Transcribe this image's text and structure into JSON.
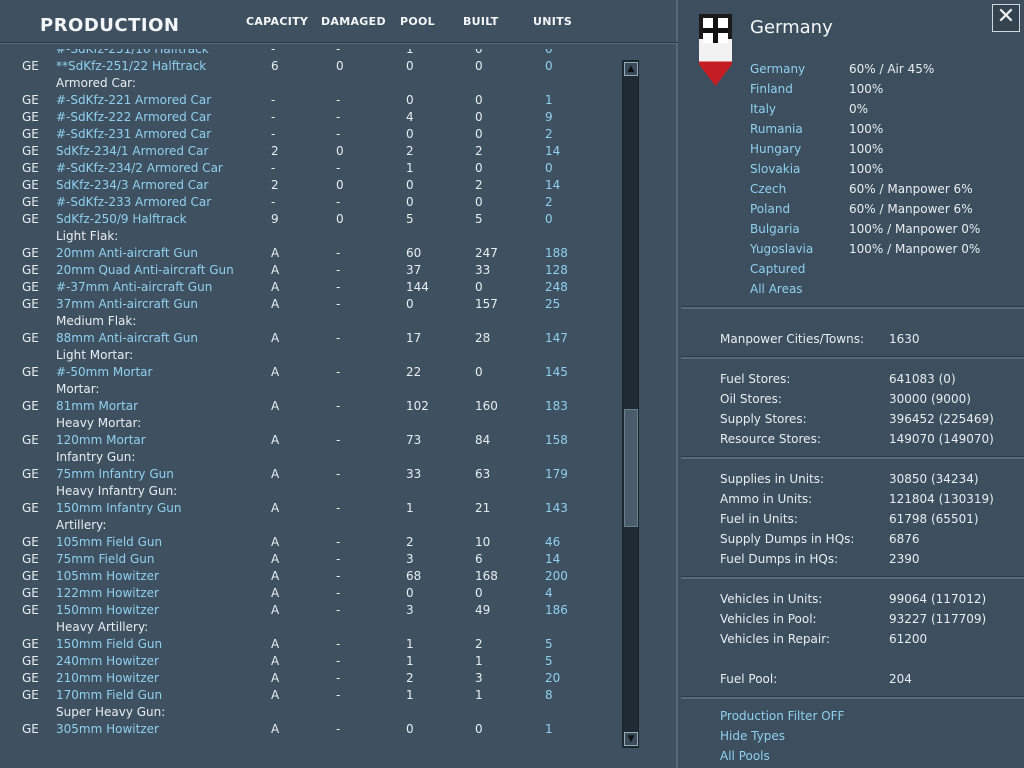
{
  "header": {
    "title": "PRODUCTION",
    "columns": [
      "CAPACITY",
      "DAMAGED",
      "POOL",
      "BUILT",
      "UNITS"
    ]
  },
  "rows": [
    {
      "nat": "",
      "name": "#-SdKfz-251/16 Halftrack",
      "cap": "-",
      "dam": "-",
      "pool": "1",
      "built": "0",
      "units": "0",
      "partial": true
    },
    {
      "nat": "GE",
      "name": "**SdKfz-251/22 Halftrack",
      "cap": "6",
      "dam": "0",
      "pool": "0",
      "built": "0",
      "units": "0"
    },
    {
      "header": "Armored Car:"
    },
    {
      "nat": "GE",
      "name": "#-SdKfz-221 Armored Car",
      "cap": "-",
      "dam": "-",
      "pool": "0",
      "built": "0",
      "units": "1"
    },
    {
      "nat": "GE",
      "name": "#-SdKfz-222 Armored Car",
      "cap": "-",
      "dam": "-",
      "pool": "4",
      "built": "0",
      "units": "9"
    },
    {
      "nat": "GE",
      "name": "#-SdKfz-231 Armored Car",
      "cap": "-",
      "dam": "-",
      "pool": "0",
      "built": "0",
      "units": "2"
    },
    {
      "nat": "GE",
      "name": "SdKfz-234/1 Armored Car",
      "cap": "2",
      "dam": "0",
      "pool": "2",
      "built": "2",
      "units": "14"
    },
    {
      "nat": "GE",
      "name": "#-SdKfz-234/2 Armored Car",
      "cap": "-",
      "dam": "-",
      "pool": "1",
      "built": "0",
      "units": "0"
    },
    {
      "nat": "GE",
      "name": "SdKfz-234/3 Armored Car",
      "cap": "2",
      "dam": "0",
      "pool": "0",
      "built": "2",
      "units": "14"
    },
    {
      "nat": "GE",
      "name": "#-SdKfz-233 Armored Car",
      "cap": "-",
      "dam": "-",
      "pool": "0",
      "built": "0",
      "units": "2"
    },
    {
      "nat": "GE",
      "name": "SdKfz-250/9 Halftrack",
      "cap": "9",
      "dam": "0",
      "pool": "5",
      "built": "5",
      "units": "0"
    },
    {
      "header": "Light Flak:"
    },
    {
      "nat": "GE",
      "name": "20mm Anti-aircraft Gun",
      "cap": "A",
      "dam": "-",
      "pool": "60",
      "built": "247",
      "units": "188"
    },
    {
      "nat": "GE",
      "name": "20mm Quad Anti-aircraft Gun",
      "cap": "A",
      "dam": "-",
      "pool": "37",
      "built": "33",
      "units": "128"
    },
    {
      "nat": "GE",
      "name": "#-37mm Anti-aircraft Gun",
      "cap": "A",
      "dam": "-",
      "pool": "144",
      "built": "0",
      "units": "248"
    },
    {
      "nat": "GE",
      "name": "37mm Anti-aircraft Gun",
      "cap": "A",
      "dam": "-",
      "pool": "0",
      "built": "157",
      "units": "25"
    },
    {
      "header": "Medium Flak:"
    },
    {
      "nat": "GE",
      "name": "88mm Anti-aircraft Gun",
      "cap": "A",
      "dam": "-",
      "pool": "17",
      "built": "28",
      "units": "147"
    },
    {
      "header": "Light Mortar:"
    },
    {
      "nat": "GE",
      "name": "#-50mm Mortar",
      "cap": "A",
      "dam": "-",
      "pool": "22",
      "built": "0",
      "units": "145"
    },
    {
      "header": "Mortar:"
    },
    {
      "nat": "GE",
      "name": "81mm Mortar",
      "cap": "A",
      "dam": "-",
      "pool": "102",
      "built": "160",
      "units": "183"
    },
    {
      "header": "Heavy Mortar:"
    },
    {
      "nat": "GE",
      "name": "120mm Mortar",
      "cap": "A",
      "dam": "-",
      "pool": "73",
      "built": "84",
      "units": "158"
    },
    {
      "header": "Infantry Gun:"
    },
    {
      "nat": "GE",
      "name": "75mm Infantry Gun",
      "cap": "A",
      "dam": "-",
      "pool": "33",
      "built": "63",
      "units": "179"
    },
    {
      "header": "Heavy Infantry Gun:"
    },
    {
      "nat": "GE",
      "name": "150mm Infantry Gun",
      "cap": "A",
      "dam": "-",
      "pool": "1",
      "built": "21",
      "units": "143"
    },
    {
      "header": "Artillery:"
    },
    {
      "nat": "GE",
      "name": "105mm Field Gun",
      "cap": "A",
      "dam": "-",
      "pool": "2",
      "built": "10",
      "units": "46"
    },
    {
      "nat": "GE",
      "name": "75mm Field Gun",
      "cap": "A",
      "dam": "-",
      "pool": "3",
      "built": "6",
      "units": "14"
    },
    {
      "nat": "GE",
      "name": "105mm Howitzer",
      "cap": "A",
      "dam": "-",
      "pool": "68",
      "built": "168",
      "units": "200"
    },
    {
      "nat": "GE",
      "name": "122mm Howitzer",
      "cap": "A",
      "dam": "-",
      "pool": "0",
      "built": "0",
      "units": "4"
    },
    {
      "nat": "GE",
      "name": "150mm Howitzer",
      "cap": "A",
      "dam": "-",
      "pool": "3",
      "built": "49",
      "units": "186"
    },
    {
      "header": "Heavy Artillery:"
    },
    {
      "nat": "GE",
      "name": "150mm Field Gun",
      "cap": "A",
      "dam": "-",
      "pool": "1",
      "built": "2",
      "units": "5"
    },
    {
      "nat": "GE",
      "name": "240mm Howitzer",
      "cap": "A",
      "dam": "-",
      "pool": "1",
      "built": "1",
      "units": "5"
    },
    {
      "nat": "GE",
      "name": "210mm Howitzer",
      "cap": "A",
      "dam": "-",
      "pool": "2",
      "built": "3",
      "units": "20"
    },
    {
      "nat": "GE",
      "name": "170mm Field Gun",
      "cap": "A",
      "dam": "-",
      "pool": "1",
      "built": "1",
      "units": "8"
    },
    {
      "header": "Super Heavy Gun:"
    },
    {
      "nat": "GE",
      "name": "305mm Howitzer",
      "cap": "A",
      "dam": "-",
      "pool": "0",
      "built": "0",
      "units": "1"
    }
  ],
  "scrollbar": {
    "up_glyph": "▲",
    "down_glyph": "▼"
  },
  "nation": {
    "name": "Germany",
    "close_glyph": "✕",
    "areas": [
      {
        "name": "Germany",
        "value": "60% / Air 45%"
      },
      {
        "name": "Finland",
        "value": "100%"
      },
      {
        "name": "Italy",
        "value": "0%"
      },
      {
        "name": "Rumania",
        "value": "100%"
      },
      {
        "name": "Hungary",
        "value": "100%"
      },
      {
        "name": "Slovakia",
        "value": "100%"
      },
      {
        "name": "Czech",
        "value": "60% / Manpower 6%"
      },
      {
        "name": "Poland",
        "value": "60% / Manpower 6%"
      },
      {
        "name": "Bulgaria",
        "value": "100% / Manpower 0%"
      },
      {
        "name": "Yugoslavia",
        "value": "100% / Manpower 0%"
      },
      {
        "name": "Captured",
        "value": ""
      },
      {
        "name": "All Areas",
        "value": ""
      }
    ]
  },
  "stats": {
    "manpower": [
      {
        "label": "Manpower Cities/Towns:",
        "value": "1630"
      }
    ],
    "stores": [
      {
        "label": "Fuel Stores:",
        "value": "641083 (0)"
      },
      {
        "label": "Oil Stores:",
        "value": "30000 (9000)"
      },
      {
        "label": "Supply Stores:",
        "value": "396452 (225469)"
      },
      {
        "label": "Resource Stores:",
        "value": "149070 (149070)"
      }
    ],
    "units": [
      {
        "label": "Supplies in Units:",
        "value": "30850 (34234)"
      },
      {
        "label": "Ammo in Units:",
        "value": "121804 (130319)"
      },
      {
        "label": "Fuel in Units:",
        "value": "61798 (65501)"
      },
      {
        "label": "Supply Dumps in HQs:",
        "value": "6876"
      },
      {
        "label": "Fuel Dumps in HQs:",
        "value": "2390"
      }
    ],
    "vehicles": [
      {
        "label": "Vehicles in Units:",
        "value": "99064 (117012)"
      },
      {
        "label": "Vehicles in Pool:",
        "value": "93227 (117709)"
      },
      {
        "label": "Vehicles in Repair:",
        "value": "61200"
      },
      {
        "label": "Fuel Pool:",
        "value": "204"
      }
    ]
  },
  "footer_links": [
    "Production Filter OFF",
    "Hide Types",
    "All Pools"
  ]
}
